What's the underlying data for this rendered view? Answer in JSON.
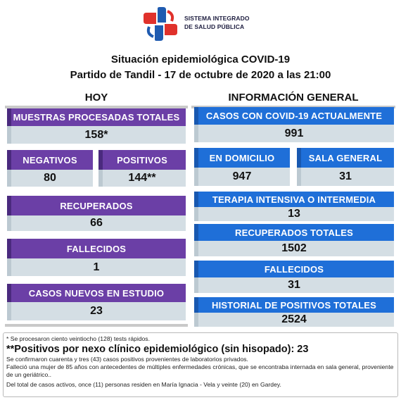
{
  "logo": {
    "line1": "SISTEMA INTEGRADO",
    "line2": "DE SALUD PÚBLICA"
  },
  "title": {
    "line1": "Situación epidemiológica COVID-19",
    "line2": "Partido de Tandil - 17 de octubre de 2020 a las 21:00"
  },
  "hoy": {
    "heading": "HOY",
    "muestras": {
      "label": "MUESTRAS PROCESADAS TOTALES",
      "value": "158*"
    },
    "negativos": {
      "label": "NEGATIVOS",
      "value": "80"
    },
    "positivos": {
      "label": "POSITIVOS",
      "value": "144**"
    },
    "recuperados": {
      "label": "RECUPERADOS",
      "value": "66"
    },
    "fallecidos": {
      "label": "FALLECIDOS",
      "value": "1"
    },
    "casos_nuevos": {
      "label": "CASOS NUEVOS EN ESTUDIO",
      "value": "23"
    }
  },
  "general": {
    "heading": "INFORMACIÓN GENERAL",
    "casos_actuales": {
      "label": "CASOS CON COVID-19 ACTUALMENTE",
      "value": "991"
    },
    "domicilio": {
      "label": "EN DOMICILIO",
      "value": "947"
    },
    "sala_general": {
      "label": "SALA GENERAL",
      "value": "31"
    },
    "terapia": {
      "label": "TERAPIA INTENSIVA O INTERMEDIA",
      "value": "13"
    },
    "recuperados_totales": {
      "label": "RECUPERADOS TOTALES",
      "value": "1502"
    },
    "fallecidos": {
      "label": "FALLECIDOS",
      "value": "31"
    },
    "historial": {
      "label": "HISTORIAL DE POSITIVOS TOTALES",
      "value": "2524"
    }
  },
  "notes": {
    "n1": "* Se procesaron ciento veintiocho (128) tests rápidos.",
    "n2": "**Positivos por nexo clínico epidemiológico (sin hisopado): 23",
    "n3": "Se confirmaron cuarenta y tres (43) casos positivos provenientes de laboratorios privados.",
    "n4": "Falleció una mujer de 85 años con antecedentes de múltiples enfermedades crónicas, que se encontraba internada en sala general, proveniente de un geriátrico..",
    "n5": "Del total de casos activos, once (11) personas residen en María Ignacia - Vela y veinte (20) en Gardey."
  },
  "colors": {
    "purple": "#6b3fa6",
    "blue": "#1f6fd8",
    "value_bg": "#d4dee4",
    "logo_red": "#e0312b",
    "logo_blue": "#1f5bb0"
  }
}
